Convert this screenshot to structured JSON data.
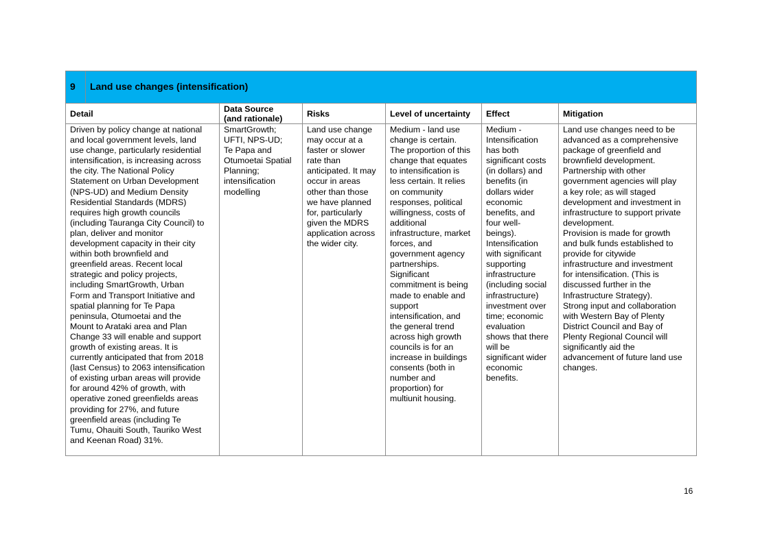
{
  "section": {
    "number": "9",
    "title": "Land use changes (intensification)"
  },
  "headers": {
    "detail": "Detail",
    "data_source": "Data Source\n(and rationale)",
    "risks": "Risks",
    "uncertainty": "Level of uncertainty",
    "effect": "Effect",
    "mitigation": "Mitigation"
  },
  "row": {
    "detail": "Driven by policy change at national\nand local government levels, land\nuse change, particularly residential\nintensification, is increasing across\nthe city. The National Policy\nStatement on Urban Development\n(NPS-UD) and Medium Density\nResidential Standards (MDRS)\nrequires high growth councils\n(including Tauranga City Council) to\nplan, deliver and monitor\ndevelopment capacity in their city\nwithin both brownfield and\ngreenfield areas. Recent local\nstrategic and policy projects,\nincluding SmartGrowth, Urban\nForm and Transport Initiative and\nspatial planning for Te Papa\npeninsula, Otumoetai and the\nMount to Arataki area and Plan\nChange 33 will enable and support\ngrowth of existing areas. It is\ncurrently anticipated that from 2018\n(last Census) to 2063 intensification\nof existing urban areas will provide\nfor around 42% of growth, with\noperative zoned greenfields areas\nproviding for 27%, and future\ngreenfield areas (including Te\nTumu, Ohauiti South, Tauriko West\nand Keenan Road) 31%.",
    "data_source": "SmartGrowth;\nUFTI, NPS-UD;\nTe Papa and\nOtumoetai Spatial\nPlanning;\nintensification\nmodelling",
    "risks": "Land use change\nmay occur at a\nfaster or slower\nrate than\nanticipated. It may\noccur in areas\nother than those\nwe have planned\nfor, particularly\ngiven the MDRS\napplication across\nthe wider city.",
    "uncertainty": "Medium - land use\nchange is certain.\nThe proportion of this\nchange that equates\nto intensification is\nless certain. It relies\non community\nresponses, political\nwillingness, costs of\nadditional\ninfrastructure, market\nforces, and\ngovernment agency\npartnerships.\nSignificant\ncommitment is being\nmade to enable and\nsupport\nintensification, and\nthe general trend\nacross high growth\ncouncils is for an\nincrease in buildings\nconsents (both in\nnumber and\nproportion) for\nmultiunit housing.",
    "effect": "Medium -\nIntensification\nhas both\nsignificant costs\n(in dollars) and\nbenefits (in\ndollars wider\neconomic\nbenefits, and\nfour well-\nbeings).\nIntensification\nwith significant\nsupporting\ninfrastructure\n(including social\ninfrastructure)\ninvestment over\ntime; economic\nevaluation\nshows that there\nwill be\nsignificant wider\neconomic\nbenefits.",
    "mitigation": "Land use changes need to be\nadvanced as a comprehensive\npackage of greenfield and\nbrownfield development.\nPartnership with other\ngovernment agencies will play\na key role; as will staged\ndevelopment and investment in\ninfrastructure to support private\ndevelopment.\nProvision is made for growth\nand bulk funds established to\nprovide for citywide\ninfrastructure and investment\nfor intensification. (This is\ndiscussed further in the\nInfrastructure Strategy).\nStrong input and collaboration\nwith Western Bay of Plenty\nDistrict Council and Bay of\nPlenty Regional Council will\nsignificantly aid the\nadvancement of future land use\nchanges."
  },
  "page_number": "16",
  "colors": {
    "section_header_bg": "#00aeef",
    "border": "#8c8c8c"
  }
}
